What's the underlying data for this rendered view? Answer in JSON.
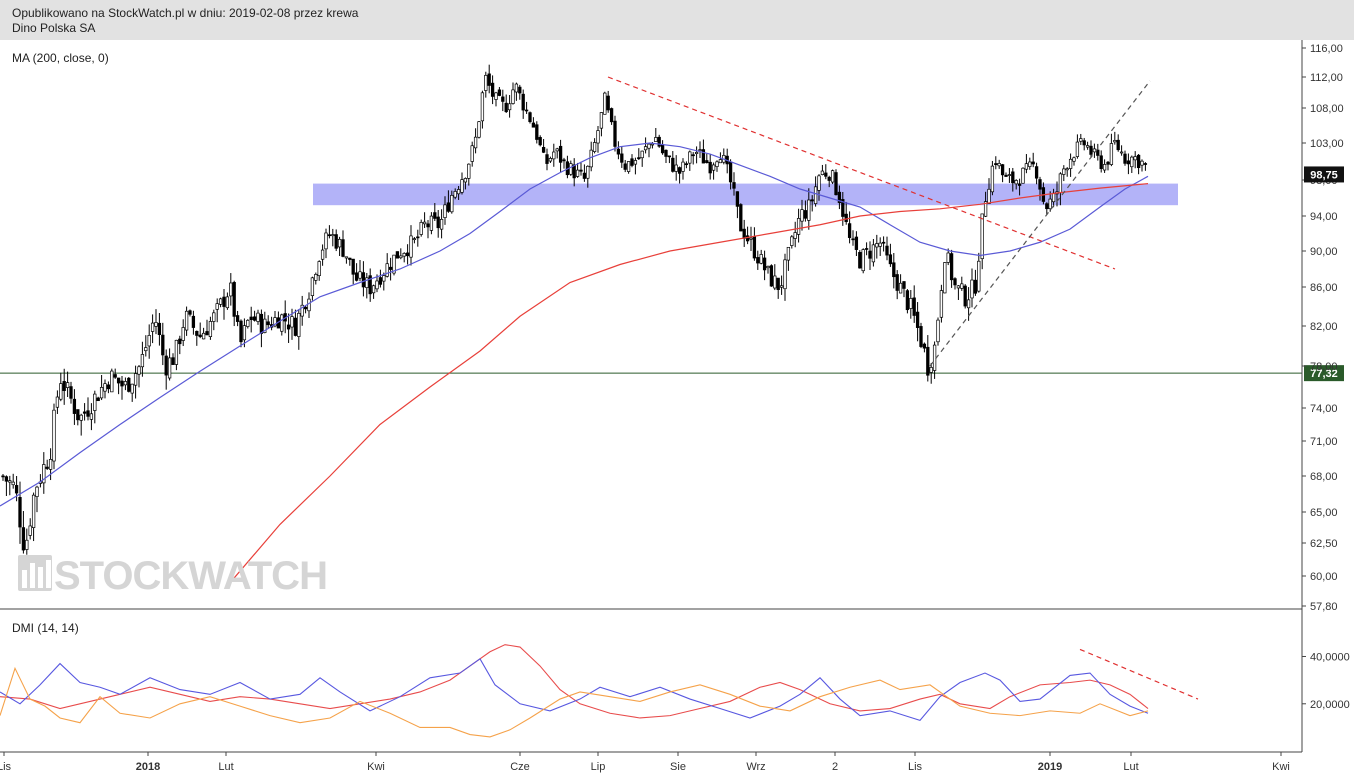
{
  "header": {
    "line1": "Opublikowano na StockWatch.pl w dniu: 2019-02-08 przez krewa",
    "line2": "Dino Polska SA"
  },
  "watermark": "STOCKWATCH",
  "colors": {
    "zone": "#a6a6f7",
    "ma200": "#e8403a",
    "ma_blue": "#5a5ad6",
    "support": "#2a5a2a",
    "trend_red": "#e03030",
    "trend_grey": "#555555",
    "dmi_red": "#e84c4c",
    "dmi_blue": "#5858e0",
    "dmi_orange": "#f5a24a"
  },
  "chart_data": [
    {
      "type": "candlestick",
      "title": "MA (200, close, 0)",
      "y_ticks": [
        "116,00",
        "112,00",
        "108,00",
        "103,00",
        "98,00",
        "94,00",
        "90,00",
        "86,00",
        "82,00",
        "78,00",
        "74,00",
        "71,00",
        "68,00",
        "65,00",
        "62,50",
        "60,00",
        "57,80"
      ],
      "y_tick_values": [
        116,
        112,
        108,
        103,
        98,
        94,
        90,
        86,
        82,
        78,
        74,
        71,
        68,
        65,
        62.5,
        60,
        57.8
      ],
      "x_ticks": [
        "Lis",
        "2018",
        "Lut",
        "Kwi",
        "Cze",
        "Lip",
        "Sie",
        "Wrz",
        "2",
        "Lis",
        "2019",
        "Lut",
        "Kwi"
      ],
      "last_price": "98,75",
      "support_level": "77,32",
      "zone": [
        95.2,
        97.6
      ],
      "price_path": [
        [
          0,
          68.2
        ],
        [
          15,
          67
        ],
        [
          25,
          62
        ],
        [
          35,
          67
        ],
        [
          50,
          70
        ],
        [
          60,
          77
        ],
        [
          70,
          75
        ],
        [
          80,
          73
        ],
        [
          95,
          75
        ],
        [
          110,
          77
        ],
        [
          125,
          76
        ],
        [
          140,
          78
        ],
        [
          155,
          83
        ],
        [
          165,
          78
        ],
        [
          175,
          79
        ],
        [
          185,
          83
        ],
        [
          200,
          81
        ],
        [
          215,
          83
        ],
        [
          230,
          86
        ],
        [
          240,
          80
        ],
        [
          250,
          83
        ],
        [
          265,
          82
        ],
        [
          280,
          83
        ],
        [
          295,
          82
        ],
        [
          310,
          86
        ],
        [
          320,
          90
        ],
        [
          330,
          92
        ],
        [
          345,
          90
        ],
        [
          355,
          87
        ],
        [
          370,
          86
        ],
        [
          385,
          88
        ],
        [
          400,
          90
        ],
        [
          415,
          91
        ],
        [
          425,
          93
        ],
        [
          440,
          93
        ],
        [
          450,
          96
        ],
        [
          465,
          99
        ],
        [
          475,
          103
        ],
        [
          485,
          112
        ],
        [
          495,
          109
        ],
        [
          505,
          108
        ],
        [
          515,
          111
        ],
        [
          525,
          108
        ],
        [
          535,
          105
        ],
        [
          545,
          100
        ],
        [
          555,
          102
        ],
        [
          565,
          100
        ],
        [
          575,
          99
        ],
        [
          585,
          98
        ],
        [
          595,
          103
        ],
        [
          605,
          109
        ],
        [
          615,
          103
        ],
        [
          625,
          100
        ],
        [
          640,
          101
        ],
        [
          655,
          104
        ],
        [
          665,
          101
        ],
        [
          680,
          99
        ],
        [
          695,
          102
        ],
        [
          710,
          100
        ],
        [
          720,
          102
        ],
        [
          730,
          98
        ],
        [
          740,
          93
        ],
        [
          750,
          91
        ],
        [
          760,
          89
        ],
        [
          770,
          87
        ],
        [
          780,
          86
        ],
        [
          790,
          90
        ],
        [
          800,
          94
        ],
        [
          810,
          95
        ],
        [
          820,
          99
        ],
        [
          830,
          99
        ],
        [
          840,
          96
        ],
        [
          850,
          91
        ],
        [
          860,
          89
        ],
        [
          870,
          90
        ],
        [
          880,
          91
        ],
        [
          890,
          88
        ],
        [
          900,
          86
        ],
        [
          910,
          84
        ],
        [
          920,
          81
        ],
        [
          928,
          78
        ],
        [
          935,
          80
        ],
        [
          945,
          90
        ],
        [
          955,
          86
        ],
        [
          965,
          85
        ],
        [
          975,
          86
        ],
        [
          985,
          96
        ],
        [
          995,
          101
        ],
        [
          1005,
          98
        ],
        [
          1015,
          98
        ],
        [
          1025,
          99
        ],
        [
          1035,
          100
        ],
        [
          1045,
          95
        ],
        [
          1055,
          96
        ],
        [
          1065,
          100
        ],
        [
          1075,
          102
        ],
        [
          1085,
          103
        ],
        [
          1095,
          101
        ],
        [
          1105,
          100
        ],
        [
          1115,
          103
        ],
        [
          1125,
          101
        ],
        [
          1135,
          101
        ],
        [
          1145,
          100
        ],
        [
          1150,
          98.75
        ]
      ],
      "ma200_path": [
        [
          230,
          59.5
        ],
        [
          280,
          64
        ],
        [
          330,
          68
        ],
        [
          380,
          72.5
        ],
        [
          430,
          76
        ],
        [
          480,
          79.5
        ],
        [
          520,
          83
        ],
        [
          570,
          86.5
        ],
        [
          620,
          88.5
        ],
        [
          670,
          90
        ],
        [
          720,
          91
        ],
        [
          770,
          92
        ],
        [
          820,
          93
        ],
        [
          860,
          94
        ],
        [
          900,
          94.5
        ],
        [
          940,
          94.8
        ],
        [
          980,
          95.3
        ],
        [
          1020,
          96
        ],
        [
          1060,
          96.6
        ],
        [
          1100,
          97.1
        ],
        [
          1148,
          97.6
        ]
      ],
      "ma_blue_path": [
        [
          0,
          65.5
        ],
        [
          40,
          67.5
        ],
        [
          80,
          70
        ],
        [
          120,
          72.5
        ],
        [
          160,
          75
        ],
        [
          200,
          77.5
        ],
        [
          240,
          80
        ],
        [
          280,
          82.5
        ],
        [
          320,
          85
        ],
        [
          360,
          86.5
        ],
        [
          400,
          88
        ],
        [
          440,
          90
        ],
        [
          470,
          92
        ],
        [
          500,
          94.5
        ],
        [
          530,
          97
        ],
        [
          560,
          99
        ],
        [
          590,
          101
        ],
        [
          620,
          102.5
        ],
        [
          650,
          103
        ],
        [
          680,
          102.5
        ],
        [
          710,
          101.5
        ],
        [
          740,
          100
        ],
        [
          770,
          98.5
        ],
        [
          800,
          97
        ],
        [
          830,
          96
        ],
        [
          860,
          95
        ],
        [
          890,
          93
        ],
        [
          920,
          91
        ],
        [
          950,
          90
        ],
        [
          980,
          89.5
        ],
        [
          1010,
          90
        ],
        [
          1040,
          91
        ],
        [
          1070,
          92.5
        ],
        [
          1100,
          95
        ],
        [
          1125,
          97
        ],
        [
          1148,
          98.5
        ]
      ],
      "trend_red": [
        [
          608,
          112
        ],
        [
          1115,
          88
        ]
      ],
      "trend_grey": [
        [
          930,
          78
        ],
        [
          1150,
          111.5
        ]
      ]
    },
    {
      "type": "line",
      "title": "DMI (14, 14)",
      "y_ticks": [
        "40,0000",
        "20,0000"
      ],
      "y_tick_values": [
        40,
        20
      ],
      "ylim": [
        3,
        55
      ],
      "series": [
        {
          "color": "#e84c4c",
          "points": [
            [
              0,
              23
            ],
            [
              30,
              22
            ],
            [
              60,
              18
            ],
            [
              90,
              21
            ],
            [
              120,
              24
            ],
            [
              150,
              27
            ],
            [
              180,
              24
            ],
            [
              210,
              21
            ],
            [
              240,
              23
            ],
            [
              270,
              22
            ],
            [
              300,
              20
            ],
            [
              330,
              18
            ],
            [
              360,
              20
            ],
            [
              390,
              22
            ],
            [
              420,
              25
            ],
            [
              450,
              30
            ],
            [
              470,
              36
            ],
            [
              490,
              42
            ],
            [
              505,
              45
            ],
            [
              520,
              44
            ],
            [
              540,
              36
            ],
            [
              560,
              26
            ],
            [
              580,
              20
            ],
            [
              610,
              16
            ],
            [
              640,
              14
            ],
            [
              670,
              15
            ],
            [
              700,
              18
            ],
            [
              730,
              21
            ],
            [
              760,
              27
            ],
            [
              780,
              29
            ],
            [
              800,
              26
            ],
            [
              830,
              20
            ],
            [
              860,
              17
            ],
            [
              890,
              18
            ],
            [
              920,
              22
            ],
            [
              940,
              24
            ],
            [
              960,
              20
            ],
            [
              990,
              18
            ],
            [
              1010,
              23
            ],
            [
              1040,
              28
            ],
            [
              1070,
              29
            ],
            [
              1090,
              30
            ],
            [
              1110,
              28
            ],
            [
              1130,
              24
            ],
            [
              1148,
              18
            ]
          ]
        },
        {
          "color": "#5858e0",
          "points": [
            [
              0,
              25
            ],
            [
              20,
              20
            ],
            [
              40,
              28
            ],
            [
              60,
              37
            ],
            [
              80,
              29
            ],
            [
              100,
              27
            ],
            [
              120,
              24
            ],
            [
              150,
              31
            ],
            [
              180,
              26
            ],
            [
              210,
              24
            ],
            [
              240,
              29
            ],
            [
              270,
              22
            ],
            [
              300,
              24
            ],
            [
              320,
              31
            ],
            [
              340,
              25
            ],
            [
              370,
              17
            ],
            [
              400,
              23
            ],
            [
              430,
              31
            ],
            [
              460,
              33
            ],
            [
              480,
              39
            ],
            [
              495,
              28
            ],
            [
              520,
              20
            ],
            [
              550,
              17
            ],
            [
              580,
              22
            ],
            [
              600,
              27
            ],
            [
              630,
              23
            ],
            [
              660,
              27
            ],
            [
              690,
              22
            ],
            [
              720,
              18
            ],
            [
              750,
              14
            ],
            [
              780,
              19
            ],
            [
              800,
              24
            ],
            [
              820,
              31
            ],
            [
              840,
              22
            ],
            [
              860,
              15
            ],
            [
              890,
              17
            ],
            [
              920,
              13
            ],
            [
              940,
              23
            ],
            [
              960,
              29
            ],
            [
              985,
              33
            ],
            [
              1000,
              30
            ],
            [
              1020,
              21
            ],
            [
              1040,
              22
            ],
            [
              1070,
              32
            ],
            [
              1090,
              33
            ],
            [
              1110,
              24
            ],
            [
              1130,
              19
            ],
            [
              1148,
              16
            ]
          ]
        },
        {
          "color": "#f5a24a",
          "points": [
            [
              0,
              15
            ],
            [
              15,
              35
            ],
            [
              30,
              22
            ],
            [
              45,
              19
            ],
            [
              60,
              14
            ],
            [
              80,
              12
            ],
            [
              100,
              23
            ],
            [
              120,
              16
            ],
            [
              150,
              14
            ],
            [
              180,
              20
            ],
            [
              210,
              23
            ],
            [
              240,
              19
            ],
            [
              270,
              15
            ],
            [
              300,
              12
            ],
            [
              330,
              14
            ],
            [
              360,
              21
            ],
            [
              390,
              16
            ],
            [
              420,
              10
            ],
            [
              450,
              10
            ],
            [
              470,
              7
            ],
            [
              490,
              6
            ],
            [
              510,
              9
            ],
            [
              530,
              14
            ],
            [
              560,
              22
            ],
            [
              580,
              25
            ],
            [
              610,
              23
            ],
            [
              640,
              21
            ],
            [
              670,
              25
            ],
            [
              700,
              28
            ],
            [
              730,
              24
            ],
            [
              760,
              19
            ],
            [
              790,
              17
            ],
            [
              820,
              23
            ],
            [
              850,
              27
            ],
            [
              880,
              30
            ],
            [
              900,
              26
            ],
            [
              930,
              28
            ],
            [
              960,
              19
            ],
            [
              990,
              16
            ],
            [
              1020,
              15
            ],
            [
              1050,
              17
            ],
            [
              1080,
              16
            ],
            [
              1100,
              20
            ],
            [
              1130,
              15
            ],
            [
              1148,
              17
            ]
          ]
        }
      ],
      "trend_red": [
        [
          1080,
          43
        ],
        [
          1198,
          22
        ]
      ]
    }
  ]
}
